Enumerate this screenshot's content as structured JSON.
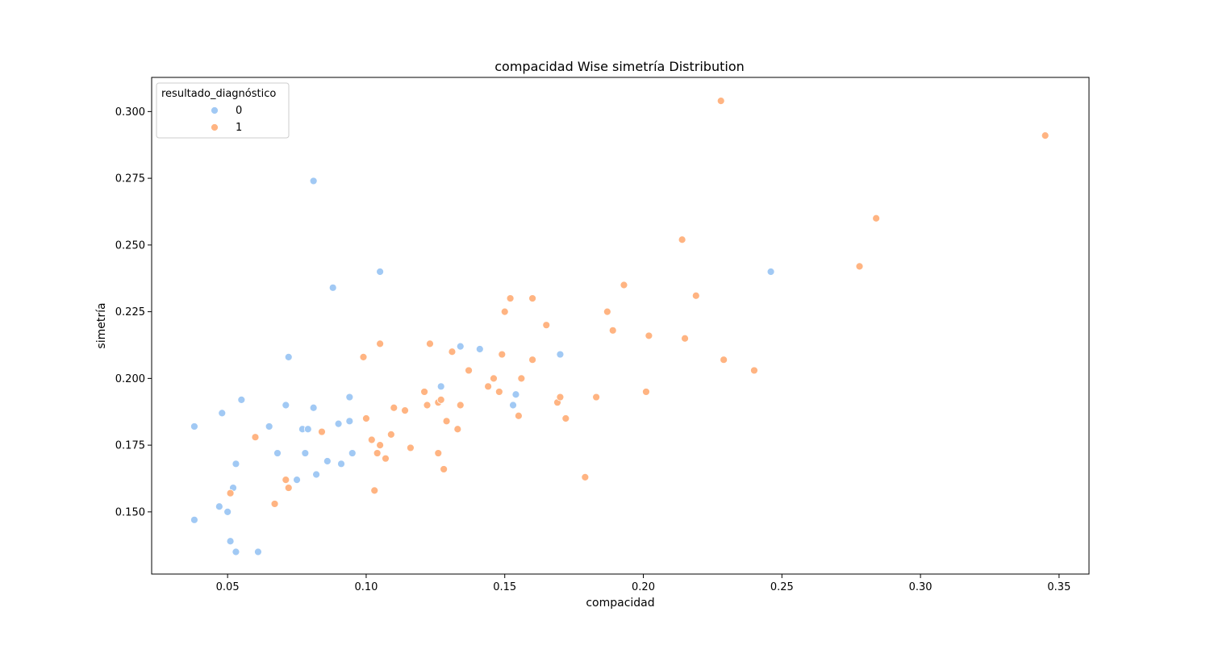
{
  "chart_data": {
    "type": "scatter",
    "title": "compacidad Wise simetría Distribution",
    "xlabel": "compacidad",
    "ylabel": "simetría",
    "xlim": [
      0.0226,
      0.3608
    ],
    "ylim": [
      0.1267,
      0.3128
    ],
    "xticks": [
      "0.05",
      "0.10",
      "0.15",
      "0.20",
      "0.25",
      "0.30",
      "0.35"
    ],
    "yticks": [
      "0.150",
      "0.175",
      "0.200",
      "0.225",
      "0.250",
      "0.275",
      "0.300"
    ],
    "legend": {
      "title": "resultado_diagnóstico",
      "placement": "top-left",
      "entries": [
        "0",
        "1"
      ]
    },
    "series": [
      {
        "name": "0",
        "color": "#a1c9f4",
        "points": [
          [
            0.038,
            0.182
          ],
          [
            0.038,
            0.147
          ],
          [
            0.048,
            0.187
          ],
          [
            0.047,
            0.152
          ],
          [
            0.05,
            0.15
          ],
          [
            0.051,
            0.139
          ],
          [
            0.052,
            0.159
          ],
          [
            0.053,
            0.168
          ],
          [
            0.053,
            0.135
          ],
          [
            0.055,
            0.192
          ],
          [
            0.061,
            0.135
          ],
          [
            0.065,
            0.182
          ],
          [
            0.068,
            0.172
          ],
          [
            0.071,
            0.19
          ],
          [
            0.072,
            0.208
          ],
          [
            0.075,
            0.162
          ],
          [
            0.077,
            0.181
          ],
          [
            0.078,
            0.172
          ],
          [
            0.079,
            0.181
          ],
          [
            0.081,
            0.189
          ],
          [
            0.081,
            0.274
          ],
          [
            0.082,
            0.164
          ],
          [
            0.086,
            0.169
          ],
          [
            0.088,
            0.234
          ],
          [
            0.09,
            0.183
          ],
          [
            0.091,
            0.168
          ],
          [
            0.094,
            0.193
          ],
          [
            0.094,
            0.184
          ],
          [
            0.095,
            0.172
          ],
          [
            0.105,
            0.24
          ],
          [
            0.127,
            0.197
          ],
          [
            0.134,
            0.212
          ],
          [
            0.141,
            0.211
          ],
          [
            0.153,
            0.19
          ],
          [
            0.154,
            0.194
          ],
          [
            0.17,
            0.209
          ],
          [
            0.246,
            0.24
          ]
        ]
      },
      {
        "name": "1",
        "color": "#ffb482",
        "points": [
          [
            0.051,
            0.157
          ],
          [
            0.06,
            0.178
          ],
          [
            0.067,
            0.153
          ],
          [
            0.071,
            0.162
          ],
          [
            0.072,
            0.159
          ],
          [
            0.084,
            0.18
          ],
          [
            0.099,
            0.208
          ],
          [
            0.1,
            0.185
          ],
          [
            0.102,
            0.177
          ],
          [
            0.103,
            0.158
          ],
          [
            0.104,
            0.172
          ],
          [
            0.105,
            0.175
          ],
          [
            0.105,
            0.213
          ],
          [
            0.107,
            0.17
          ],
          [
            0.109,
            0.179
          ],
          [
            0.11,
            0.189
          ],
          [
            0.114,
            0.188
          ],
          [
            0.116,
            0.174
          ],
          [
            0.121,
            0.195
          ],
          [
            0.122,
            0.19
          ],
          [
            0.123,
            0.213
          ],
          [
            0.126,
            0.191
          ],
          [
            0.126,
            0.172
          ],
          [
            0.127,
            0.192
          ],
          [
            0.128,
            0.166
          ],
          [
            0.129,
            0.184
          ],
          [
            0.131,
            0.21
          ],
          [
            0.133,
            0.181
          ],
          [
            0.134,
            0.19
          ],
          [
            0.137,
            0.203
          ],
          [
            0.144,
            0.197
          ],
          [
            0.146,
            0.2
          ],
          [
            0.148,
            0.195
          ],
          [
            0.149,
            0.209
          ],
          [
            0.15,
            0.225
          ],
          [
            0.152,
            0.23
          ],
          [
            0.155,
            0.186
          ],
          [
            0.156,
            0.2
          ],
          [
            0.16,
            0.207
          ],
          [
            0.16,
            0.23
          ],
          [
            0.165,
            0.22
          ],
          [
            0.169,
            0.191
          ],
          [
            0.17,
            0.193
          ],
          [
            0.172,
            0.185
          ],
          [
            0.179,
            0.163
          ],
          [
            0.183,
            0.193
          ],
          [
            0.187,
            0.225
          ],
          [
            0.189,
            0.218
          ],
          [
            0.193,
            0.235
          ],
          [
            0.201,
            0.195
          ],
          [
            0.202,
            0.216
          ],
          [
            0.214,
            0.252
          ],
          [
            0.215,
            0.215
          ],
          [
            0.219,
            0.231
          ],
          [
            0.228,
            0.304
          ],
          [
            0.229,
            0.207
          ],
          [
            0.24,
            0.203
          ],
          [
            0.278,
            0.242
          ],
          [
            0.284,
            0.26
          ],
          [
            0.345,
            0.291
          ]
        ]
      }
    ]
  }
}
